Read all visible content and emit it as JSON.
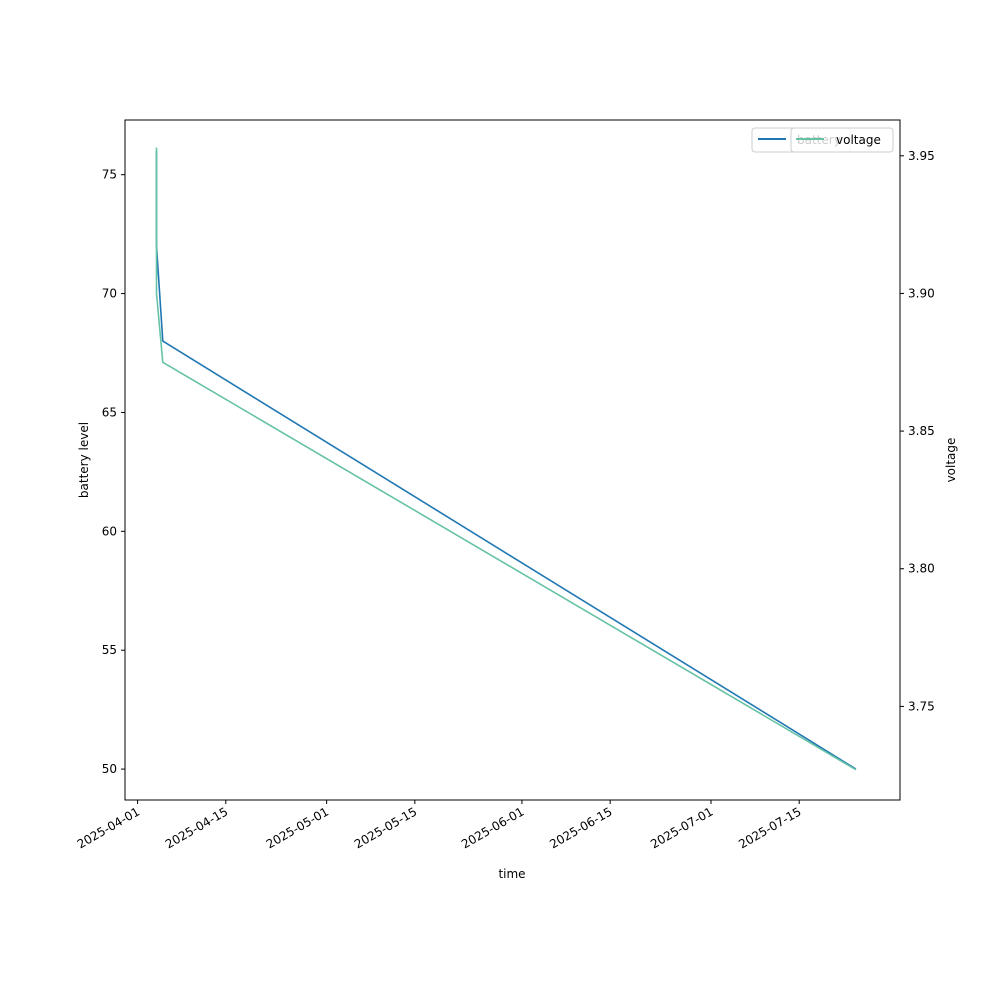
{
  "chart_data": {
    "type": "line",
    "xlabel": "time",
    "ylabel": "battery level",
    "y2label": "voltage",
    "x_ticks": [
      "2025-04-01",
      "2025-04-15",
      "2025-05-01",
      "2025-05-15",
      "2025-06-01",
      "2025-06-15",
      "2025-07-01",
      "2025-07-15"
    ],
    "y_ticks": [
      50,
      55,
      60,
      65,
      70,
      75
    ],
    "y2_ticks": [
      3.75,
      3.8,
      3.85,
      3.9,
      3.95
    ],
    "xlim": [
      "2025-03-30",
      "2025-07-31"
    ],
    "ylim": [
      48.7,
      77.3
    ],
    "y2lim": [
      3.716,
      3.963
    ],
    "grid": false,
    "legend_placement": "top-right",
    "series": [
      {
        "name": "battery",
        "axis": "left",
        "color": "#1f77b4",
        "x": [
          "2025-04-04",
          "2025-04-04",
          "2025-04-05",
          "2025-07-24"
        ],
        "values": [
          76,
          72,
          68,
          50
        ]
      },
      {
        "name": "voltage",
        "axis": "right",
        "color": "#66c2a5",
        "x": [
          "2025-04-04",
          "2025-04-04",
          "2025-04-05",
          "2025-07-24"
        ],
        "values": [
          3.953,
          3.9,
          3.875,
          3.727
        ]
      }
    ]
  }
}
